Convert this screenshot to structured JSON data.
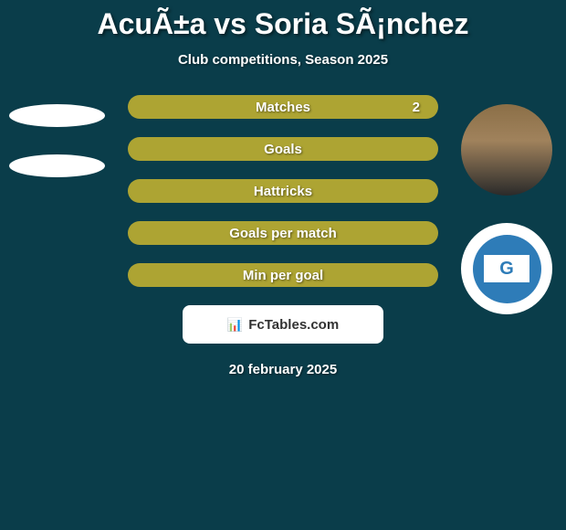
{
  "title": "AcuÃ±a vs Soria SÃ¡nchez",
  "subtitle": "Club competitions, Season 2025",
  "stats": [
    {
      "label": "Matches",
      "right_value": "2"
    },
    {
      "label": "Goals",
      "right_value": ""
    },
    {
      "label": "Hattricks",
      "right_value": ""
    },
    {
      "label": "Goals per match",
      "right_value": ""
    },
    {
      "label": "Min per goal",
      "right_value": ""
    }
  ],
  "attribution": {
    "icon": "📊",
    "text": "FcTables.com"
  },
  "date": "20 february 2025",
  "colors": {
    "background": "#0a3d4a",
    "bar": "#ada433",
    "text": "#ffffff",
    "logo_blue": "#2e7cb8"
  }
}
